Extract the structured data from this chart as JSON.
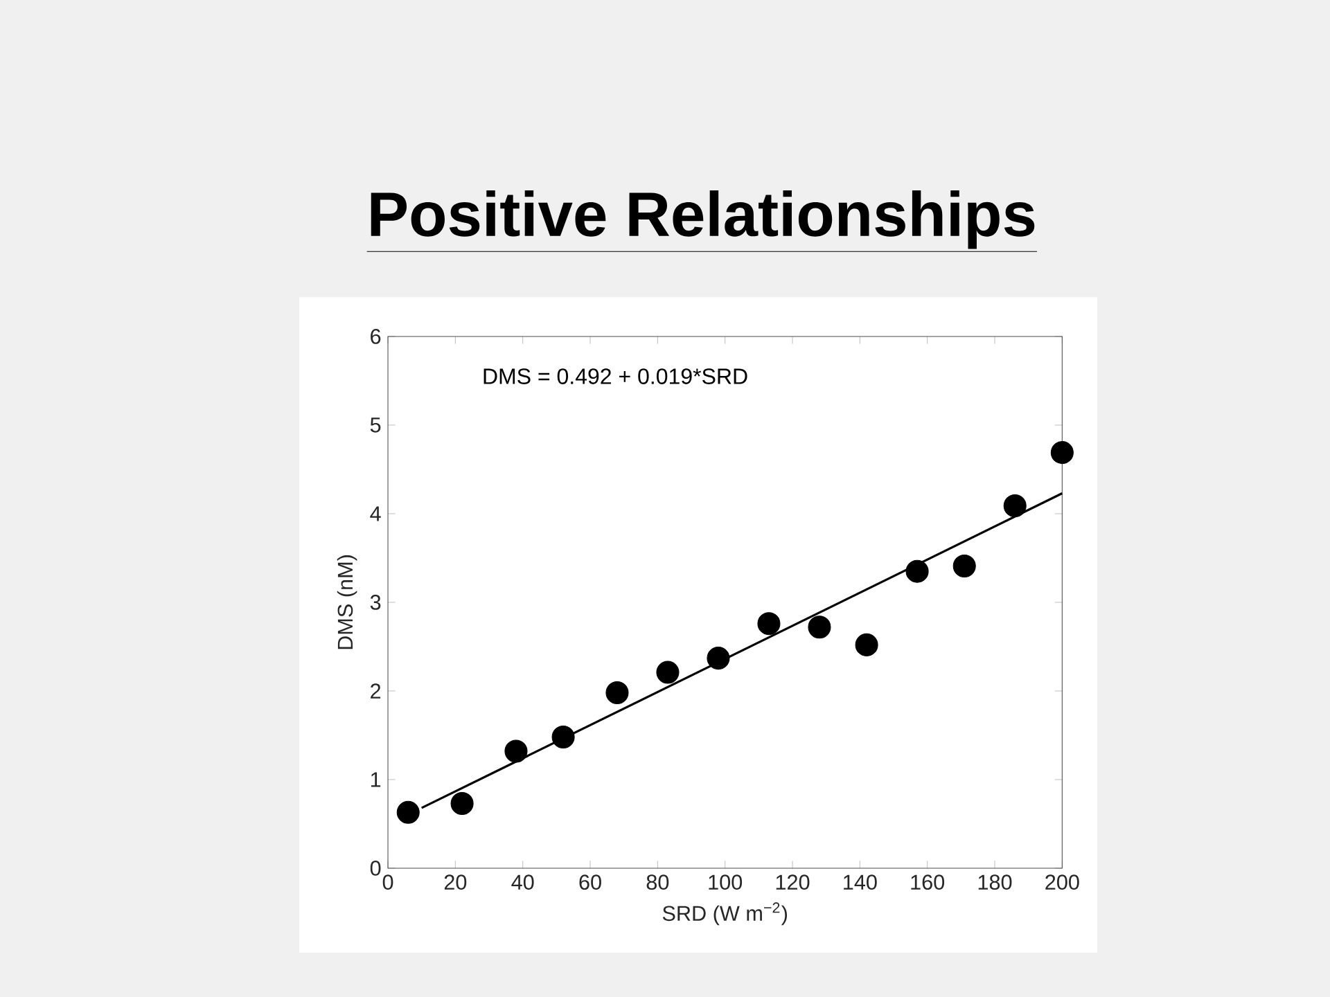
{
  "chart_data": {
    "type": "scatter",
    "title": "Positive Relationships",
    "xlabel": "SRD (W m$^{−2}$)",
    "ylabel": "DMS (nM)",
    "annotations": [
      "DMS = 0.492 + 0.019*SRD"
    ],
    "xlim": [
      0,
      200
    ],
    "ylim": [
      0,
      6
    ],
    "xticks": [
      0,
      20,
      40,
      60,
      80,
      100,
      120,
      140,
      160,
      180,
      200
    ],
    "yticks": [
      0,
      1,
      2,
      3,
      4,
      5,
      6
    ],
    "series": [
      {
        "color": "#000000",
        "marker": "circle",
        "x": [
          6,
          22,
          38,
          52,
          68,
          83,
          98,
          113,
          128,
          142,
          157,
          171,
          186,
          200
        ],
        "values": [
          0.63,
          0.73,
          1.32,
          1.48,
          1.98,
          2.21,
          2.37,
          2.76,
          2.72,
          2.52,
          3.35,
          3.41,
          4.09,
          4.69
        ]
      },
      {
        "type": "line",
        "marker": "none",
        "color": "#000000",
        "x": [
          10,
          200
        ],
        "values": [
          0.68,
          4.23
        ]
      }
    ]
  }
}
